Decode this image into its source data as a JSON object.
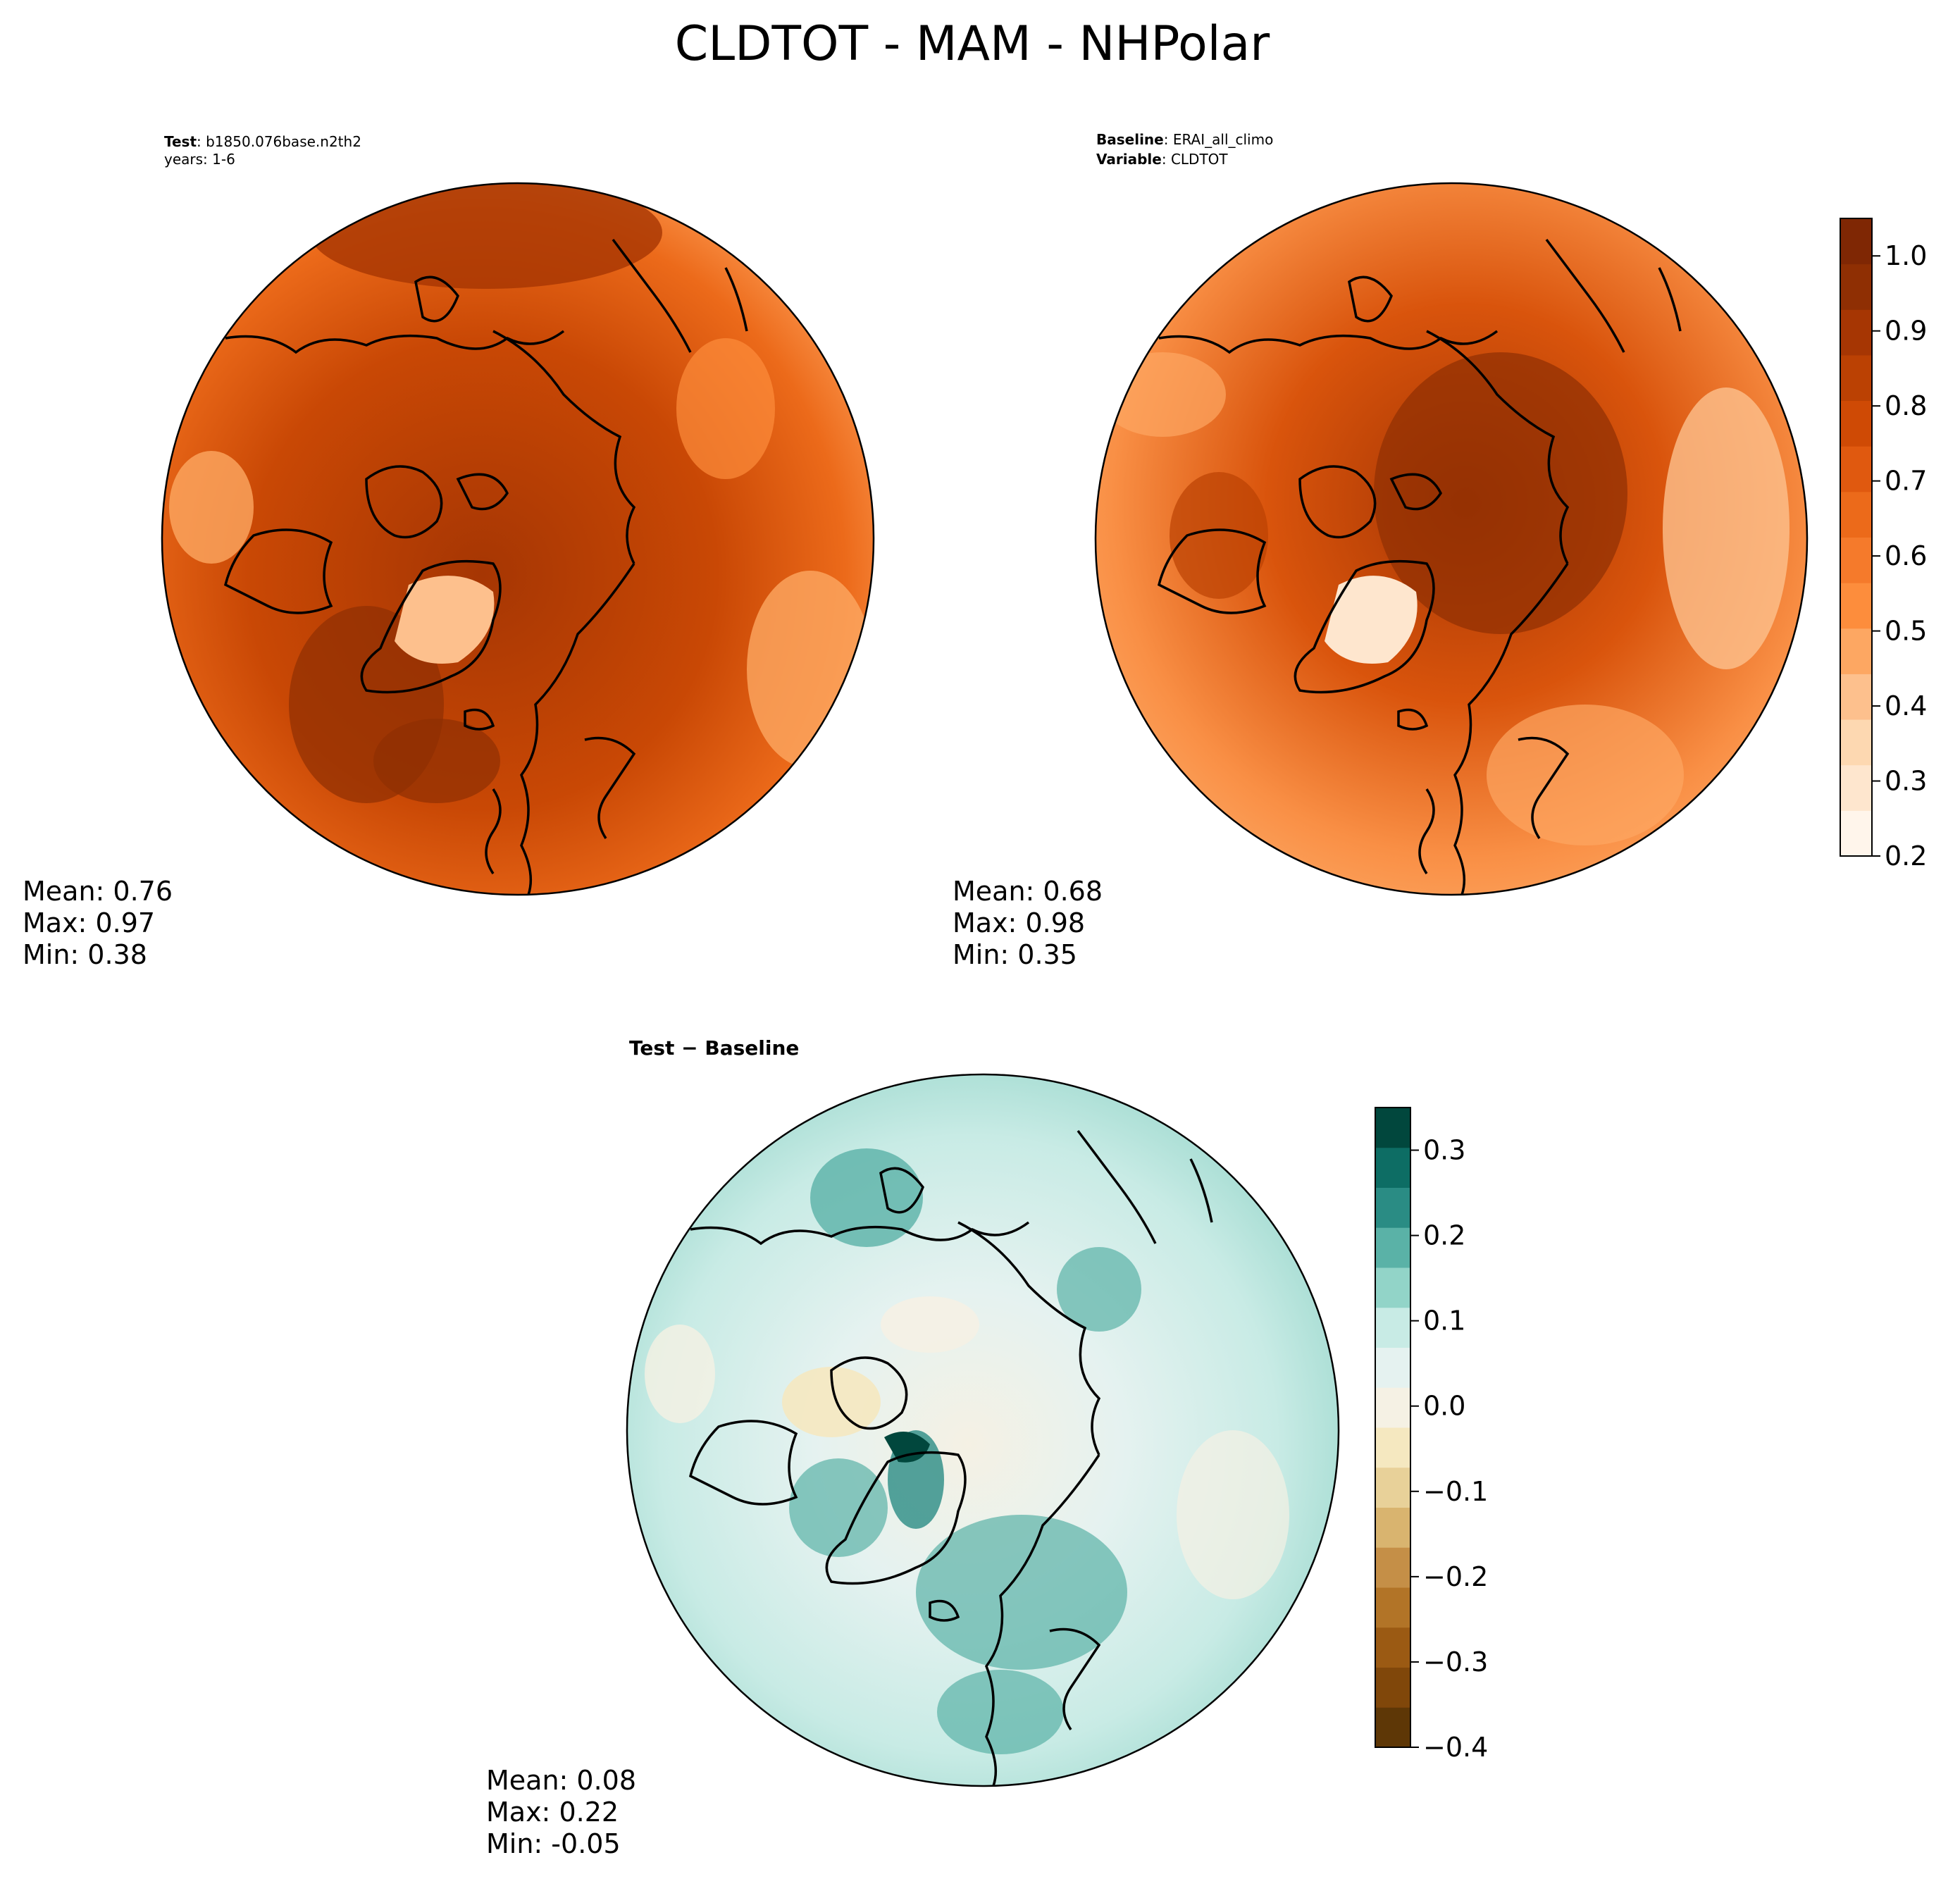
{
  "figure": {
    "title": "CLDTOT - MAM - NHPolar",
    "colors": {
      "land_outline": "#000000",
      "background": "#ffffff"
    }
  },
  "panels": {
    "test": {
      "label_bold": "Test",
      "label_text": ": b1850.076base.n2th2",
      "line2": "years: 1-6",
      "stats": {
        "mean": "Mean:  0.76",
        "max": "Max:  0.97",
        "min": "Min:  0.38"
      }
    },
    "baseline": {
      "label_bold": "Baseline",
      "label_text": ": ERAI_all_climo",
      "line2_bold": "Variable",
      "line2_text": ": CLDTOT",
      "stats": {
        "mean": "Mean:  0.68",
        "max": "Max:  0.98",
        "min": "Min:  0.35"
      }
    },
    "diff": {
      "title": "Test − Baseline",
      "stats": {
        "mean": "Mean:  0.08",
        "max": "Max:  0.22",
        "min": "Min: -0.05"
      }
    }
  },
  "colorbars": {
    "main": {
      "range": [
        0.2,
        1.05
      ],
      "ticks": [
        {
          "value": 0.2,
          "label": "0.2"
        },
        {
          "value": 0.3,
          "label": "0.3"
        },
        {
          "value": 0.4,
          "label": "0.4"
        },
        {
          "value": 0.5,
          "label": "0.5"
        },
        {
          "value": 0.6,
          "label": "0.6"
        },
        {
          "value": 0.7,
          "label": "0.7"
        },
        {
          "value": 0.8,
          "label": "0.8"
        },
        {
          "value": 0.9,
          "label": "0.9"
        },
        {
          "value": 1.0,
          "label": "1.0"
        }
      ],
      "colors": [
        "#fff5eb",
        "#fee6ce",
        "#fdd8b1",
        "#fdc08d",
        "#fda762",
        "#fd8d3c",
        "#f57a2b",
        "#ec6a1a",
        "#e0590f",
        "#cf4a05",
        "#bb4103",
        "#a63603",
        "#8f2f03",
        "#7f2704"
      ]
    },
    "diff": {
      "range": [
        -0.4,
        0.35
      ],
      "ticks": [
        {
          "value": -0.4,
          "label": "−0.4"
        },
        {
          "value": -0.3,
          "label": "−0.3"
        },
        {
          "value": -0.2,
          "label": "−0.2"
        },
        {
          "value": -0.1,
          "label": "−0.1"
        },
        {
          "value": 0.0,
          "label": "0.0"
        },
        {
          "value": 0.1,
          "label": "0.1"
        },
        {
          "value": 0.2,
          "label": "0.2"
        },
        {
          "value": 0.3,
          "label": "0.3"
        }
      ],
      "colors": [
        "#5e3706",
        "#80470a",
        "#9b5a13",
        "#b27427",
        "#c58f47",
        "#d9b46f",
        "#e8d199",
        "#f5e8c0",
        "#f5f1e4",
        "#e5f2f0",
        "#c8ebe5",
        "#92d4c8",
        "#5ab2a7",
        "#2a8c84",
        "#0d6d64",
        "#01473d"
      ]
    }
  }
}
